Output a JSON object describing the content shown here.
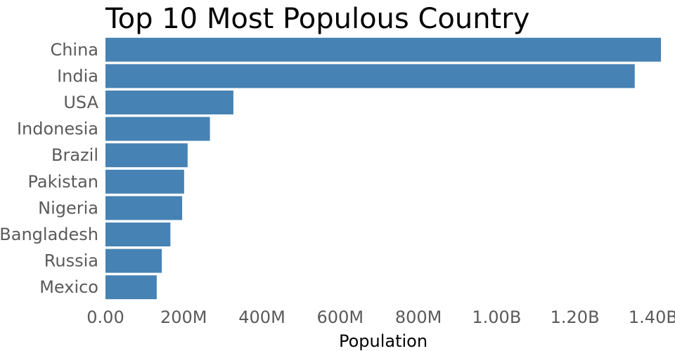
{
  "chart_data": {
    "type": "bar",
    "orientation": "horizontal",
    "title": "Top 10 Most Populous Country",
    "xlabel": "Population",
    "ylabel": "",
    "categories": [
      "China",
      "India",
      "USA",
      "Indonesia",
      "Brazil",
      "Pakistan",
      "Nigeria",
      "Bangladesh",
      "Russia",
      "Mexico"
    ],
    "values": [
      1420000000,
      1353000000,
      327000000,
      267000000,
      210000000,
      201000000,
      196000000,
      166000000,
      144000000,
      131000000
    ],
    "x_ticks": [
      {
        "value": 0,
        "label": "0.00"
      },
      {
        "value": 200000000,
        "label": "200M"
      },
      {
        "value": 400000000,
        "label": "400M"
      },
      {
        "value": 600000000,
        "label": "600M"
      },
      {
        "value": 800000000,
        "label": "800M"
      },
      {
        "value": 1000000000,
        "label": "1.00B"
      },
      {
        "value": 1200000000,
        "label": "1.20B"
      },
      {
        "value": 1400000000,
        "label": "1.40B"
      }
    ],
    "xlim": [
      0,
      1420000000
    ],
    "grid": false,
    "legend": "none",
    "bar_color": "#4682b4"
  }
}
